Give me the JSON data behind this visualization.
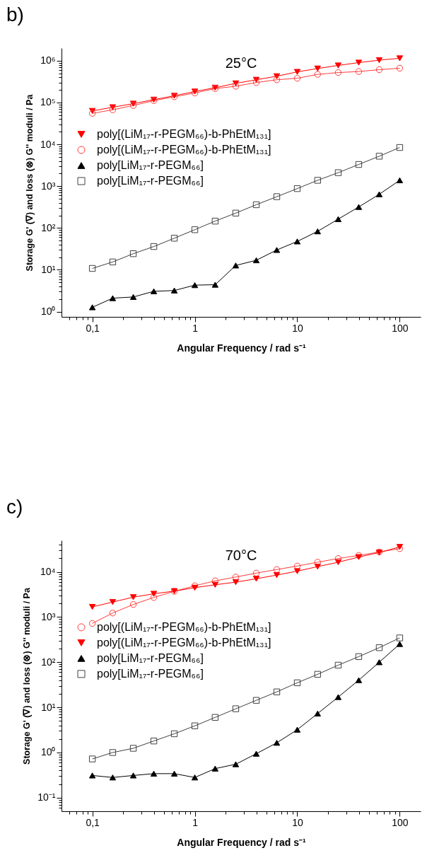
{
  "chart_data": [
    {
      "type": "line",
      "title": "25°C",
      "annotations": [
        "b)"
      ],
      "xlabel": "Angular Frequency / rad s⁻¹",
      "ylabel": "Storage G' (∇) and loss (⊗) G'' moduli / Pa",
      "log": "xy",
      "legend": "left",
      "grid": false,
      "x": [
        0.1,
        0.158,
        0.251,
        0.398,
        0.631,
        1,
        1.58,
        2.51,
        3.98,
        6.31,
        10,
        15.8,
        25.1,
        39.8,
        63.1,
        100
      ],
      "xlim": [
        0.05,
        160
      ],
      "ylim": [
        0.75,
        2000000
      ],
      "xticks": [
        {
          "value": 0.06,
          "label": null
        },
        {
          "value": 0.07,
          "label": null
        },
        {
          "value": 0.08,
          "label": null
        },
        {
          "value": 0.09,
          "label": null
        },
        {
          "value": 0.1,
          "label": "0,1"
        },
        {
          "value": 0.2,
          "label": null
        },
        {
          "value": 0.3,
          "label": null
        },
        {
          "value": 0.4,
          "label": null
        },
        {
          "value": 0.5,
          "label": null
        },
        {
          "value": 0.6,
          "label": null
        },
        {
          "value": 0.7,
          "label": null
        },
        {
          "value": 0.8,
          "label": null
        },
        {
          "value": 0.9,
          "label": null
        },
        1,
        {
          "value": 2,
          "label": null
        },
        {
          "value": 3,
          "label": null
        },
        {
          "value": 4,
          "label": null
        },
        {
          "value": 5,
          "label": null
        },
        {
          "value": 6,
          "label": null
        },
        {
          "value": 7,
          "label": null
        },
        {
          "value": 8,
          "label": null
        },
        {
          "value": 9,
          "label": null
        },
        10,
        {
          "value": 20,
          "label": null
        },
        {
          "value": 30,
          "label": null
        },
        {
          "value": 40,
          "label": null
        },
        {
          "value": 50,
          "label": null
        },
        {
          "value": 60,
          "label": null
        },
        {
          "value": 70,
          "label": null
        },
        {
          "value": 80,
          "label": null
        },
        {
          "value": 90,
          "label": null
        },
        100
      ],
      "yticks": [
        {
          "value": 1,
          "label": "10⁰"
        },
        {
          "value": 2,
          "label": null
        },
        {
          "value": 3,
          "label": null
        },
        {
          "value": 4,
          "label": null
        },
        {
          "value": 5,
          "label": null
        },
        {
          "value": 6,
          "label": null
        },
        {
          "value": 7,
          "label": null
        },
        {
          "value": 8,
          "label": null
        },
        {
          "value": 9,
          "label": null
        },
        {
          "value": 10,
          "label": "10¹"
        },
        {
          "value": 20,
          "label": null
        },
        {
          "value": 30,
          "label": null
        },
        {
          "value": 40,
          "label": null
        },
        {
          "value": 50,
          "label": null
        },
        {
          "value": 60,
          "label": null
        },
        {
          "value": 70,
          "label": null
        },
        {
          "value": 80,
          "label": null
        },
        {
          "value": 90,
          "label": null
        },
        {
          "value": 100,
          "label": "10²"
        },
        {
          "value": 200,
          "label": null
        },
        {
          "value": 300,
          "label": null
        },
        {
          "value": 400,
          "label": null
        },
        {
          "value": 500,
          "label": null
        },
        {
          "value": 600,
          "label": null
        },
        {
          "value": 700,
          "label": null
        },
        {
          "value": 800,
          "label": null
        },
        {
          "value": 900,
          "label": null
        },
        {
          "value": 1000,
          "label": "10³"
        },
        {
          "value": 2000,
          "label": null
        },
        {
          "value": 3000,
          "label": null
        },
        {
          "value": 4000,
          "label": null
        },
        {
          "value": 5000,
          "label": null
        },
        {
          "value": 6000,
          "label": null
        },
        {
          "value": 7000,
          "label": null
        },
        {
          "value": 8000,
          "label": null
        },
        {
          "value": 9000,
          "label": null
        },
        {
          "value": 10000,
          "label": "10⁴"
        },
        {
          "value": 20000,
          "label": null
        },
        {
          "value": 30000,
          "label": null
        },
        {
          "value": 40000,
          "label": null
        },
        {
          "value": 50000,
          "label": null
        },
        {
          "value": 60000,
          "label": null
        },
        {
          "value": 70000,
          "label": null
        },
        {
          "value": 80000,
          "label": null
        },
        {
          "value": 90000,
          "label": null
        },
        {
          "value": 100000,
          "label": "10⁵"
        },
        {
          "value": 200000,
          "label": null
        },
        {
          "value": 300000,
          "label": null
        },
        {
          "value": 400000,
          "label": null
        },
        {
          "value": 500000,
          "label": null
        },
        {
          "value": 600000,
          "label": null
        },
        {
          "value": 700000,
          "label": null
        },
        {
          "value": 800000,
          "label": null
        },
        {
          "value": 900000,
          "label": null
        },
        {
          "value": 1000000,
          "label": "10⁶"
        }
      ],
      "series": [
        {
          "name": "poly[(LiM₁₇-r-PEGM₆₆)-b-PhEtM₁₃₁]",
          "color": "#ff0000",
          "marker": "triangle-down",
          "values": [
            63000,
            77000,
            94000,
            117000,
            145000,
            183000,
            226000,
            287000,
            350000,
            425000,
            540000,
            650000,
            770000,
            900000,
            1030000,
            1140000
          ]
        },
        {
          "name": "poly[(LiM₁₇-r-PEGM₆₆)-b-PhEtM₁₃₁]",
          "color": "#ff3b3b",
          "marker": "circle",
          "values": [
            55000,
            67000,
            85000,
            111000,
            137000,
            169000,
            215000,
            245000,
            300000,
            350000,
            380000,
            470000,
            520000,
            550000,
            610000,
            660000
          ]
        },
        {
          "name": "poly[LiM₁₇-r-PEGM₆₆]",
          "color": "#000000",
          "marker": "triangle",
          "values": [
            1.27,
            2.1,
            2.24,
            3.06,
            3.2,
            4.3,
            4.4,
            12.7,
            16.9,
            29.8,
            47.7,
            83,
            163,
            318,
            640,
            1380
          ]
        },
        {
          "name": "poly[LiM₁₇-r-PEGM₆₆]",
          "color": "#404040",
          "marker": "square",
          "values": [
            10.8,
            15.4,
            24.3,
            36,
            57,
            91,
            146,
            227,
            360,
            560,
            875,
            1380,
            2100,
            3300,
            5200,
            8400
          ]
        }
      ]
    },
    {
      "type": "line",
      "title": "70°C",
      "annotations": [
        "c)"
      ],
      "xlabel": "Angular Frequency / rad s⁻¹",
      "ylabel": "Storage G' (∇) and loss (⊗) G'' moduli / Pa",
      "log": "xy",
      "legend": "left",
      "grid": false,
      "x": [
        0.1,
        0.158,
        0.251,
        0.398,
        0.631,
        1,
        1.58,
        2.51,
        3.98,
        6.31,
        10,
        15.8,
        25.1,
        39.8,
        63.1,
        100
      ],
      "xlim": [
        0.05,
        160
      ],
      "ylim": [
        0.05,
        50000
      ],
      "xticks": [
        {
          "value": 0.06,
          "label": null
        },
        {
          "value": 0.07,
          "label": null
        },
        {
          "value": 0.08,
          "label": null
        },
        {
          "value": 0.09,
          "label": null
        },
        {
          "value": 0.1,
          "label": "0,1"
        },
        {
          "value": 0.2,
          "label": null
        },
        {
          "value": 0.3,
          "label": null
        },
        {
          "value": 0.4,
          "label": null
        },
        {
          "value": 0.5,
          "label": null
        },
        {
          "value": 0.6,
          "label": null
        },
        {
          "value": 0.7,
          "label": null
        },
        {
          "value": 0.8,
          "label": null
        },
        {
          "value": 0.9,
          "label": null
        },
        1,
        {
          "value": 2,
          "label": null
        },
        {
          "value": 3,
          "label": null
        },
        {
          "value": 4,
          "label": null
        },
        {
          "value": 5,
          "label": null
        },
        {
          "value": 6,
          "label": null
        },
        {
          "value": 7,
          "label": null
        },
        {
          "value": 8,
          "label": null
        },
        {
          "value": 9,
          "label": null
        },
        10,
        {
          "value": 20,
          "label": null
        },
        {
          "value": 30,
          "label": null
        },
        {
          "value": 40,
          "label": null
        },
        {
          "value": 50,
          "label": null
        },
        {
          "value": 60,
          "label": null
        },
        {
          "value": 70,
          "label": null
        },
        {
          "value": 80,
          "label": null
        },
        {
          "value": 90,
          "label": null
        },
        100
      ],
      "yticks": [
        {
          "value": 0.06,
          "label": null
        },
        {
          "value": 0.07,
          "label": null
        },
        {
          "value": 0.08,
          "label": null
        },
        {
          "value": 0.09,
          "label": null
        },
        {
          "value": 0.1,
          "label": "10⁻¹"
        },
        {
          "value": 0.2,
          "label": null
        },
        {
          "value": 0.3,
          "label": null
        },
        {
          "value": 0.4,
          "label": null
        },
        {
          "value": 0.5,
          "label": null
        },
        {
          "value": 0.6,
          "label": null
        },
        {
          "value": 0.7,
          "label": null
        },
        {
          "value": 0.8,
          "label": null
        },
        {
          "value": 0.9,
          "label": null
        },
        {
          "value": 1,
          "label": "10⁰"
        },
        {
          "value": 2,
          "label": null
        },
        {
          "value": 3,
          "label": null
        },
        {
          "value": 4,
          "label": null
        },
        {
          "value": 5,
          "label": null
        },
        {
          "value": 6,
          "label": null
        },
        {
          "value": 7,
          "label": null
        },
        {
          "value": 8,
          "label": null
        },
        {
          "value": 9,
          "label": null
        },
        {
          "value": 10,
          "label": "10¹"
        },
        {
          "value": 20,
          "label": null
        },
        {
          "value": 30,
          "label": null
        },
        {
          "value": 40,
          "label": null
        },
        {
          "value": 50,
          "label": null
        },
        {
          "value": 60,
          "label": null
        },
        {
          "value": 70,
          "label": null
        },
        {
          "value": 80,
          "label": null
        },
        {
          "value": 90,
          "label": null
        },
        {
          "value": 100,
          "label": "10²"
        },
        {
          "value": 200,
          "label": null
        },
        {
          "value": 300,
          "label": null
        },
        {
          "value": 400,
          "label": null
        },
        {
          "value": 500,
          "label": null
        },
        {
          "value": 600,
          "label": null
        },
        {
          "value": 700,
          "label": null
        },
        {
          "value": 800,
          "label": null
        },
        {
          "value": 900,
          "label": null
        },
        {
          "value": 1000,
          "label": "10³"
        },
        {
          "value": 2000,
          "label": null
        },
        {
          "value": 3000,
          "label": null
        },
        {
          "value": 4000,
          "label": null
        },
        {
          "value": 5000,
          "label": null
        },
        {
          "value": 6000,
          "label": null
        },
        {
          "value": 7000,
          "label": null
        },
        {
          "value": 8000,
          "label": null
        },
        {
          "value": 9000,
          "label": null
        },
        {
          "value": 10000,
          "label": "10⁴"
        },
        {
          "value": 20000,
          "label": null
        },
        {
          "value": 30000,
          "label": null
        },
        {
          "value": 40000,
          "label": null
        }
      ],
      "series": [
        {
          "name": "poly[(LiM₁₇-r-PEGM₆₆)-b-PhEtM₁₃₁]",
          "color": "#ff3b3b",
          "marker": "circle",
          "values": [
            724,
            1230,
            1900,
            2720,
            3710,
            4940,
            6330,
            7710,
            9400,
            11300,
            13500,
            16400,
            19800,
            23200,
            27600,
            32800
          ]
        },
        {
          "name": "poly[(LiM₁₇-r-PEGM₆₆)-b-PhEtM₁₃₁]",
          "color": "#ff0000",
          "marker": "triangle-down",
          "values": [
            1680,
            2150,
            2760,
            3280,
            3760,
            4480,
            5190,
            5940,
            7060,
            8510,
            10400,
            13100,
            16400,
            21300,
            26900,
            35800
          ]
        },
        {
          "name": "poly[LiM₁₇-r-PEGM₆₆]",
          "color": "#000000",
          "marker": "triangle",
          "values": [
            0.31,
            0.28,
            0.31,
            0.34,
            0.34,
            0.28,
            0.44,
            0.55,
            0.94,
            1.64,
            3.2,
            7.3,
            16.9,
            40,
            100,
            253
          ]
        },
        {
          "name": "poly[LiM₁₇-r-PEGM₆₆]",
          "color": "#404040",
          "marker": "square",
          "values": [
            0.72,
            1.0,
            1.24,
            1.8,
            2.6,
            3.9,
            6.0,
            9.3,
            14.3,
            22,
            35,
            54,
            86,
            133,
            210,
            345
          ]
        }
      ]
    }
  ]
}
